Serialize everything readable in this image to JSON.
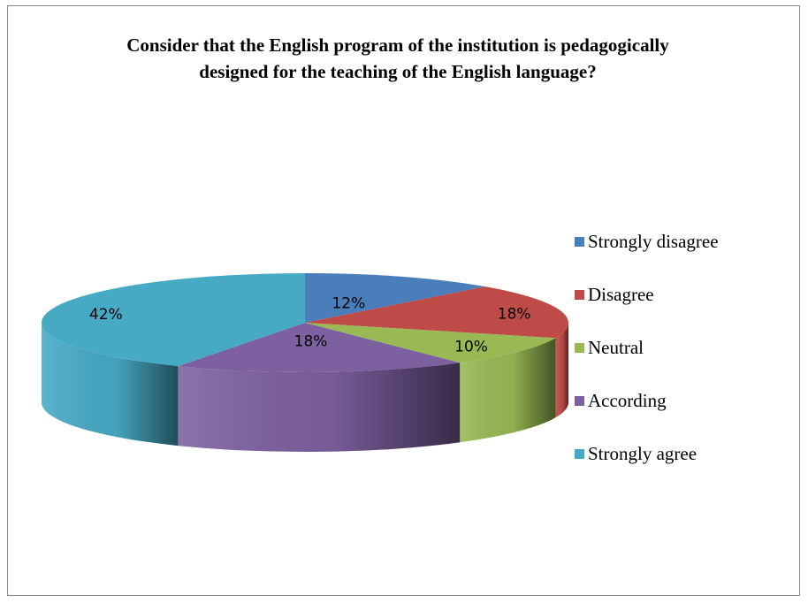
{
  "chart_data": {
    "type": "pie",
    "title": "Consider that the English program of the institution is pedagogically designed for the teaching of the English language?",
    "categories": [
      "Strongly disagree",
      "Disagree",
      "Neutral",
      "According",
      "Strongly agree"
    ],
    "values": [
      12,
      18,
      10,
      18,
      42
    ],
    "labels": [
      "12%",
      "18%",
      "10%",
      "18%",
      "42%"
    ],
    "colors": [
      "#4a7ebb",
      "#be4b48",
      "#98b954",
      "#7d60a0",
      "#46aac5"
    ],
    "legend_position": "right",
    "style": "3d"
  }
}
